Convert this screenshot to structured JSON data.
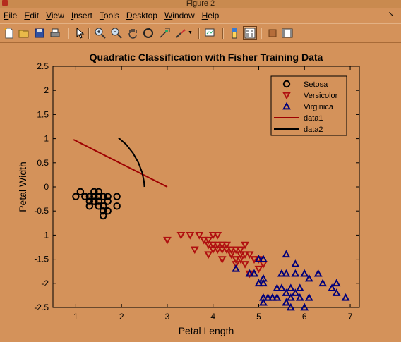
{
  "window": {
    "title": "Figure 2"
  },
  "menu": [
    {
      "id": "file",
      "pre": "",
      "u": "F",
      "post": "ile"
    },
    {
      "id": "edit",
      "pre": "",
      "u": "E",
      "post": "dit"
    },
    {
      "id": "view",
      "pre": "",
      "u": "V",
      "post": "iew"
    },
    {
      "id": "insert",
      "pre": "",
      "u": "I",
      "post": "nsert"
    },
    {
      "id": "tools",
      "pre": "",
      "u": "T",
      "post": "ools"
    },
    {
      "id": "desktop",
      "pre": "",
      "u": "D",
      "post": "esktop"
    },
    {
      "id": "window",
      "pre": "",
      "u": "W",
      "post": "indow"
    },
    {
      "id": "help",
      "pre": "",
      "u": "H",
      "post": "elp"
    }
  ],
  "toolbar": [
    "new-figure-icon",
    "open-file-icon",
    "save-icon",
    "print-icon",
    "edit-plot-arrow-icon",
    "zoom-in-icon",
    "zoom-out-icon",
    "pan-hand-icon",
    "rotate-3d-icon",
    "data-cursor-icon",
    "brush-icon",
    "link-plot-icon",
    "insert-colorbar-icon",
    "insert-legend-icon",
    "hide-plot-tools-icon",
    "show-plot-tools-icon"
  ],
  "chart_data": {
    "type": "scatter",
    "title": "Quadratic Classification with Fisher Training Data",
    "xlabel": "Petal Length",
    "ylabel": "Petal Width",
    "xlim": [
      0.5,
      7.2
    ],
    "ylim": [
      -2.5,
      2.5
    ],
    "xticks": [
      1,
      2,
      3,
      4,
      5,
      6,
      7
    ],
    "yticks": [
      -2.5,
      -2,
      -1.5,
      -1,
      -0.5,
      0,
      0.5,
      1,
      1.5,
      2,
      2.5
    ],
    "grid": false,
    "legend_position": "top-right",
    "series": [
      {
        "name": "Setosa",
        "marker": "circle",
        "color": "#000000",
        "x": [
          1.0,
          1.1,
          1.2,
          1.3,
          1.3,
          1.4,
          1.4,
          1.4,
          1.5,
          1.5,
          1.5,
          1.6,
          1.6,
          1.6,
          1.7,
          1.7,
          1.9,
          1.9,
          1.5,
          1.4,
          1.6,
          1.3,
          1.5,
          1.7,
          1.2
        ],
        "y": [
          -0.2,
          -0.1,
          -0.2,
          -0.3,
          -0.2,
          -0.1,
          -0.2,
          -0.3,
          -0.1,
          -0.2,
          -0.3,
          -0.2,
          -0.4,
          -0.5,
          -0.2,
          -0.3,
          -0.2,
          -0.4,
          -0.4,
          -0.3,
          -0.6,
          -0.4,
          -0.2,
          -0.5,
          -0.2
        ]
      },
      {
        "name": "Versicolor",
        "marker": "triangle-down",
        "color": "#b01010",
        "x": [
          3.0,
          3.3,
          3.5,
          3.6,
          3.7,
          3.8,
          3.9,
          3.9,
          4.0,
          4.0,
          4.1,
          4.1,
          4.2,
          4.2,
          4.3,
          4.3,
          4.4,
          4.4,
          4.5,
          4.5,
          4.5,
          4.6,
          4.6,
          4.7,
          4.7,
          4.7,
          4.8,
          4.8,
          4.9,
          4.9,
          5.0,
          5.0,
          5.1,
          4.0,
          4.2,
          4.5,
          4.6,
          4.4,
          4.1,
          3.9,
          4.3
        ],
        "y": [
          -1.1,
          -1.0,
          -1.0,
          -1.3,
          -1.0,
          -1.1,
          -1.1,
          -1.4,
          -1.0,
          -1.3,
          -1.0,
          -1.3,
          -1.2,
          -1.5,
          -1.3,
          -1.2,
          -1.4,
          -1.3,
          -1.5,
          -1.3,
          -1.6,
          -1.4,
          -1.3,
          -1.4,
          -1.2,
          -1.6,
          -1.8,
          -1.4,
          -1.5,
          -1.5,
          -1.7,
          -1.5,
          -1.6,
          -1.2,
          -1.3,
          -1.5,
          -1.5,
          -1.4,
          -1.2,
          -1.2,
          -1.3
        ]
      },
      {
        "name": "Virginica",
        "marker": "triangle-up",
        "color": "#00007a",
        "x": [
          4.5,
          4.8,
          4.9,
          5.0,
          5.0,
          5.1,
          5.1,
          5.1,
          5.1,
          5.2,
          5.3,
          5.4,
          5.5,
          5.5,
          5.6,
          5.6,
          5.6,
          5.7,
          5.7,
          5.8,
          5.8,
          5.9,
          5.9,
          6.0,
          6.0,
          6.1,
          6.1,
          6.3,
          6.4,
          6.6,
          6.7,
          6.7,
          6.9,
          5.6,
          5.8,
          5.1,
          4.9,
          5.4,
          5.7,
          5.6
        ],
        "y": [
          -1.7,
          -1.8,
          -1.8,
          -2.0,
          -1.5,
          -2.3,
          -2.4,
          -1.9,
          -1.5,
          -2.3,
          -2.3,
          -2.1,
          -1.8,
          -2.1,
          -1.4,
          -2.4,
          -2.2,
          -2.5,
          -2.1,
          -1.8,
          -2.2,
          -2.1,
          -2.3,
          -1.8,
          -2.5,
          -1.9,
          -2.3,
          -1.8,
          -2.0,
          -2.1,
          -2.2,
          -2.0,
          -2.3,
          -2.4,
          -1.6,
          -2.0,
          -1.8,
          -2.3,
          -2.3,
          -1.8
        ]
      },
      {
        "name": "data1",
        "marker": "line",
        "color": "#9e0000",
        "x": [
          0.95,
          3.0
        ],
        "y": [
          0.98,
          0.0
        ]
      },
      {
        "name": "data2",
        "marker": "line",
        "color": "#000000",
        "x": [
          1.93,
          2.1,
          2.25,
          2.37,
          2.45,
          2.49,
          2.5
        ],
        "y": [
          1.02,
          0.88,
          0.7,
          0.5,
          0.3,
          0.12,
          0.0
        ]
      }
    ]
  }
}
